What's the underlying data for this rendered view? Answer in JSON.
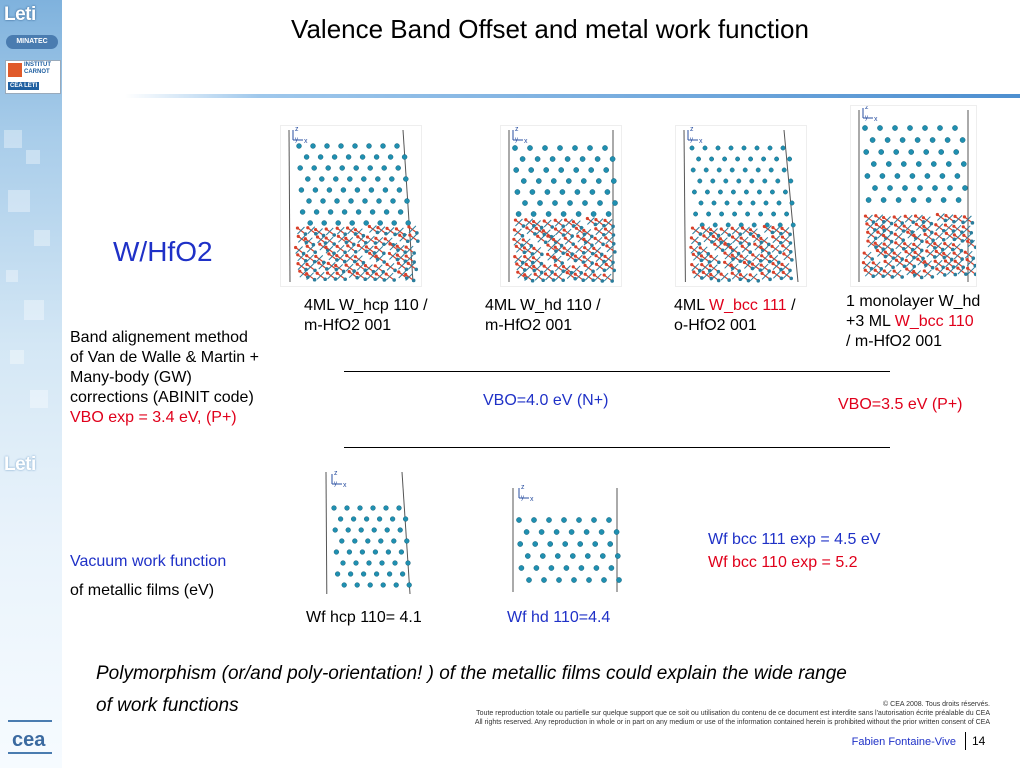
{
  "title": "Valence Band Offset and metal work function",
  "logos": {
    "leti": "Leti",
    "minatec": "MINATEC",
    "institut": "INSTITUT",
    "carnot": "CARNOT",
    "cea_leti": "CEA LETI",
    "cea": "cea"
  },
  "system_label": "W/HfO2",
  "method": {
    "line1": "Band alignement method",
    "line2": "of Van de Walle & Martin +",
    "line3": "Many-body (GW)",
    "line4": "corrections (ABINIT code)",
    "vbo_exp": "VBO exp = 3.4 eV, (P+)"
  },
  "structures": [
    {
      "line1": "4ML W_hcp 110 /",
      "line2": "m-HfO2 001"
    },
    {
      "line1": "4ML W_hd 110 /",
      "line2": "m-HfO2 001"
    },
    {
      "line1_pre": "4ML ",
      "line1_red": "W_bcc 111",
      "line1_post": " /",
      "line2": "o-HfO2 001"
    },
    {
      "line1": "1 monolayer W_hd",
      "line2_pre": "+3 ML ",
      "line2_red": "W_bcc 110",
      "line3": "/ m-HfO2 001"
    }
  ],
  "vbo_values": {
    "blue": "VBO=4.0 eV (N+)",
    "red": "VBO=3.5 eV (P+)"
  },
  "work_function": {
    "label_blue": "Vacuum work function",
    "label_black": "of metallic films (eV)",
    "hcp": "Wf hcp 110= 4.1",
    "hd": "Wf hd 110=4.4",
    "bcc111": "Wf bcc 111 exp = 4.5 eV",
    "bcc110": "Wf bcc 110 exp = 5.2"
  },
  "conclusion": {
    "line1": "Polymorphism (or/and poly-orientation! ) of the metallic films could explain the wide range",
    "line2": "of work functions"
  },
  "footer": {
    "copyright": "© CEA 2008. Tous droits réservés.",
    "fr_notice": "Toute reproduction totale ou partielle sur quelque support que ce soit ou utilisation du contenu de ce document est interdite sans l'autorisation écrite préalable du CEA",
    "en_notice": "All rights reserved. Any reproduction in whole or in part on any medium or use of the information contained herein is prohibited without the prior written consent of CEA",
    "author": "Fabien Fontaine-Vive",
    "page": "14"
  },
  "axis_letters": {
    "z": "z",
    "y": "y",
    "x": "x"
  },
  "colors": {
    "blue_text": "#1f31c7",
    "red_text": "#e0001b",
    "w_atom": "#1f8fb0",
    "o_atom": "#d8402a",
    "hf_atom": "#2a7d9c"
  }
}
